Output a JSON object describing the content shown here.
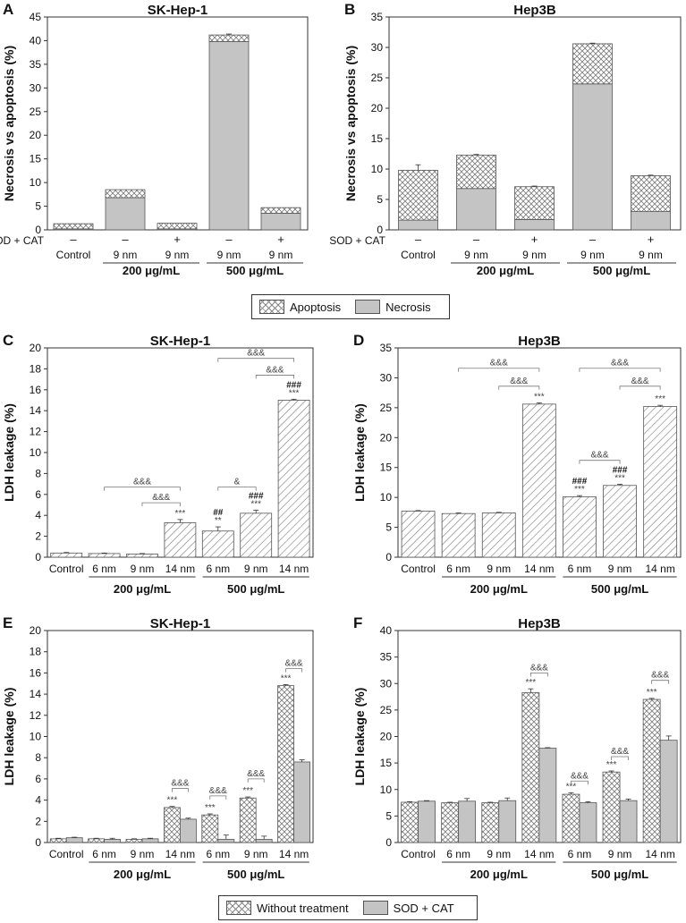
{
  "legends": {
    "top": {
      "apoptosis": "Apoptosis",
      "necrosis": "Necrosis"
    },
    "bottom": {
      "without": "Without treatment",
      "sodcat": "SOD + CAT"
    }
  },
  "chart_data": [
    {
      "id": "A",
      "letter": "A",
      "type": "bar",
      "title": "SK-Hep-1",
      "ylabel": "Necrosis vs apoptosis (%)",
      "ylim": [
        0,
        45
      ],
      "yticks": [
        0,
        5,
        10,
        15,
        20,
        25,
        30,
        35,
        40,
        45
      ],
      "stacked": true,
      "sodcat_label": "SOD + CAT",
      "categories": [
        "Control",
        "9 nm",
        "9 nm",
        "9 nm",
        "9 nm"
      ],
      "sodcat": [
        "–",
        "–",
        "+",
        "–",
        "+"
      ],
      "groups": [
        {
          "label": "200 μg/mL",
          "from": 1,
          "to": 2
        },
        {
          "label": "500 μg/mL",
          "from": 3,
          "to": 4
        }
      ],
      "series": [
        {
          "name": "Necrosis",
          "pattern": "solid",
          "values": [
            0.2,
            6.8,
            0.2,
            39.8,
            3.5
          ],
          "err": [
            0,
            0,
            0,
            0.3,
            0
          ]
        },
        {
          "name": "Apoptosis",
          "pattern": "cross",
          "values": [
            1.1,
            1.7,
            1.2,
            1.4,
            1.2
          ],
          "err": [
            0,
            0,
            0,
            0.2,
            0
          ]
        }
      ]
    },
    {
      "id": "B",
      "letter": "B",
      "type": "bar",
      "title": "Hep3B",
      "ylabel": "Necrosis vs apoptosis (%)",
      "ylim": [
        0,
        35
      ],
      "yticks": [
        0,
        5,
        10,
        15,
        20,
        25,
        30,
        35
      ],
      "stacked": true,
      "sodcat_label": "SOD + CAT",
      "categories": [
        "Control",
        "9 nm",
        "9 nm",
        "9 nm",
        "9 nm"
      ],
      "sodcat": [
        "–",
        "–",
        "+",
        "–",
        "+"
      ],
      "groups": [
        {
          "label": "200 μg/mL",
          "from": 1,
          "to": 2
        },
        {
          "label": "500 μg/mL",
          "from": 3,
          "to": 4
        }
      ],
      "series": [
        {
          "name": "Necrosis",
          "pattern": "solid",
          "values": [
            1.6,
            6.8,
            1.7,
            24.0,
            3.0
          ],
          "err": [
            0.1,
            0.1,
            0.1,
            0.5,
            0.1
          ]
        },
        {
          "name": "Apoptosis",
          "pattern": "cross",
          "values": [
            8.2,
            5.5,
            5.4,
            6.6,
            5.9
          ],
          "err": [
            0.9,
            0.1,
            0.1,
            0.1,
            0.1
          ]
        }
      ]
    },
    {
      "id": "C",
      "letter": "C",
      "type": "bar",
      "title": "SK-Hep-1",
      "ylabel": "LDH leakage (%)",
      "ylim": [
        0,
        20
      ],
      "yticks": [
        0,
        2,
        4,
        6,
        8,
        10,
        12,
        14,
        16,
        18,
        20
      ],
      "categories": [
        "Control",
        "6 nm",
        "9 nm",
        "14 nm",
        "6 nm",
        "9 nm",
        "14 nm"
      ],
      "groups": [
        {
          "label": "200 μg/mL",
          "from": 1,
          "to": 3
        },
        {
          "label": "500 μg/mL",
          "from": 4,
          "to": 6
        }
      ],
      "series": [
        {
          "name": "LDH leakage",
          "pattern": "diag",
          "values": [
            0.4,
            0.35,
            0.3,
            3.3,
            2.5,
            4.2,
            15.0
          ],
          "err": [
            0.05,
            0.05,
            0.05,
            0.3,
            0.4,
            0.3,
            0.1
          ]
        }
      ],
      "labels": [
        {
          "index": 3,
          "lines": [
            "***"
          ]
        },
        {
          "index": 4,
          "lines": [
            "##",
            "**"
          ]
        },
        {
          "index": 5,
          "lines": [
            "###",
            "***"
          ]
        },
        {
          "index": 6,
          "lines": [
            "###",
            "***"
          ]
        }
      ],
      "brackets": [
        {
          "from": 1,
          "to": 3,
          "level": 6.7,
          "text": "&&&"
        },
        {
          "from": 2,
          "to": 3,
          "level": 5.2,
          "text": "&&&"
        },
        {
          "from": 4,
          "to": 5,
          "level": 6.7,
          "text": "&"
        },
        {
          "from": 4,
          "to": 6,
          "level": 19.0,
          "text": "&&&"
        },
        {
          "from": 5,
          "to": 6,
          "level": 17.4,
          "text": "&&&"
        }
      ]
    },
    {
      "id": "D",
      "letter": "D",
      "type": "bar",
      "title": "Hep3B",
      "ylabel": "LDH leakage (%)",
      "ylim": [
        0,
        35
      ],
      "yticks": [
        0,
        5,
        10,
        15,
        20,
        25,
        30,
        35
      ],
      "categories": [
        "Control",
        "6 nm",
        "9 nm",
        "14 nm",
        "6 nm",
        "9 nm",
        "14 nm"
      ],
      "groups": [
        {
          "label": "200 μg/mL",
          "from": 1,
          "to": 3
        },
        {
          "label": "500 μg/mL",
          "from": 4,
          "to": 6
        }
      ],
      "series": [
        {
          "name": "LDH leakage",
          "pattern": "diag",
          "values": [
            7.7,
            7.3,
            7.4,
            25.6,
            10.1,
            12.0,
            25.2
          ],
          "err": [
            0.1,
            0.1,
            0.1,
            0.2,
            0.2,
            0.2,
            0.2
          ]
        }
      ],
      "labels": [
        {
          "index": 3,
          "lines": [
            "***"
          ]
        },
        {
          "index": 4,
          "lines": [
            "###",
            "***"
          ]
        },
        {
          "index": 5,
          "lines": [
            "###",
            "***"
          ]
        },
        {
          "index": 6,
          "lines": [
            "***"
          ]
        }
      ],
      "brackets": [
        {
          "from": 1,
          "to": 3,
          "level": 31.6,
          "text": "&&&"
        },
        {
          "from": 2,
          "to": 3,
          "level": 28.6,
          "text": "&&&"
        },
        {
          "from": 4,
          "to": 5,
          "level": 16.2,
          "text": "&&&"
        },
        {
          "from": 4,
          "to": 6,
          "level": 31.6,
          "text": "&&&"
        },
        {
          "from": 5,
          "to": 6,
          "level": 28.6,
          "text": "&&&"
        }
      ]
    },
    {
      "id": "E",
      "letter": "E",
      "type": "bar",
      "title": "SK-Hep-1",
      "ylabel": "LDH leakage (%)",
      "ylim": [
        0,
        20
      ],
      "yticks": [
        0,
        2,
        4,
        6,
        8,
        10,
        12,
        14,
        16,
        18,
        20
      ],
      "categories": [
        "Control",
        "6 nm",
        "9 nm",
        "14 nm",
        "6 nm",
        "9 nm",
        "14 nm"
      ],
      "groups": [
        {
          "label": "200 μg/mL",
          "from": 1,
          "to": 3
        },
        {
          "label": "500 μg/mL",
          "from": 4,
          "to": 6
        }
      ],
      "series": [
        {
          "name": "Without treatment",
          "pattern": "cross",
          "values": [
            0.35,
            0.35,
            0.3,
            3.3,
            2.6,
            4.2,
            14.8
          ],
          "err": [
            0.05,
            0.05,
            0.05,
            0.1,
            0.1,
            0.1,
            0.1
          ]
        },
        {
          "name": "SOD + CAT",
          "pattern": "solid",
          "values": [
            0.45,
            0.3,
            0.35,
            2.2,
            0.3,
            0.3,
            7.6
          ],
          "err": [
            0.05,
            0.1,
            0.05,
            0.1,
            0.4,
            0.3,
            0.2
          ]
        }
      ],
      "labels": [
        {
          "index": 3,
          "series": 0,
          "lines": [
            "***"
          ]
        },
        {
          "index": 4,
          "series": 0,
          "lines": [
            "***"
          ]
        },
        {
          "index": 5,
          "series": 0,
          "lines": [
            "***"
          ]
        },
        {
          "index": 6,
          "series": 0,
          "lines": [
            "***"
          ]
        }
      ],
      "brackets": [
        {
          "from": 3,
          "to": 3,
          "pair": true,
          "level": 5.1,
          "text": "&&&"
        },
        {
          "from": 4,
          "to": 4,
          "pair": true,
          "level": 4.4,
          "text": "&&&"
        },
        {
          "from": 5,
          "to": 5,
          "pair": true,
          "level": 6.0,
          "text": "&&&"
        },
        {
          "from": 6,
          "to": 6,
          "pair": true,
          "level": 16.4,
          "text": "&&&"
        }
      ]
    },
    {
      "id": "F",
      "letter": "F",
      "type": "bar",
      "title": "Hep3B",
      "ylabel": "LDH leakage (%)",
      "ylim": [
        0,
        40
      ],
      "yticks": [
        0,
        5,
        10,
        15,
        20,
        25,
        30,
        35,
        40
      ],
      "categories": [
        "Control",
        "6 nm",
        "9 nm",
        "14 nm",
        "6 nm",
        "9 nm",
        "14 nm"
      ],
      "groups": [
        {
          "label": "200 μg/mL",
          "from": 1,
          "to": 3
        },
        {
          "label": "500 μg/mL",
          "from": 4,
          "to": 6
        }
      ],
      "series": [
        {
          "name": "Without treatment",
          "pattern": "cross",
          "values": [
            7.6,
            7.5,
            7.5,
            28.3,
            9.1,
            13.3,
            27.0
          ],
          "err": [
            0.1,
            0.1,
            0.1,
            0.7,
            0.3,
            0.2,
            0.2
          ]
        },
        {
          "name": "SOD + CAT",
          "pattern": "solid",
          "values": [
            7.8,
            7.8,
            7.9,
            17.8,
            7.5,
            7.9,
            19.3
          ],
          "err": [
            0.1,
            0.5,
            0.5,
            0.1,
            0.2,
            0.3,
            0.8
          ]
        }
      ],
      "labels": [
        {
          "index": 3,
          "series": 0,
          "lines": [
            "***"
          ]
        },
        {
          "index": 4,
          "series": 0,
          "lines": [
            "***"
          ]
        },
        {
          "index": 5,
          "series": 0,
          "lines": [
            "***"
          ]
        },
        {
          "index": 6,
          "series": 0,
          "lines": [
            "***"
          ]
        }
      ],
      "brackets": [
        {
          "from": 3,
          "to": 3,
          "pair": true,
          "level": 32.0,
          "text": "&&&"
        },
        {
          "from": 4,
          "to": 4,
          "pair": true,
          "level": 11.6,
          "text": "&&&"
        },
        {
          "from": 5,
          "to": 5,
          "pair": true,
          "level": 16.2,
          "text": "&&&"
        },
        {
          "from": 6,
          "to": 6,
          "pair": true,
          "level": 30.6,
          "text": "&&&"
        }
      ]
    }
  ]
}
